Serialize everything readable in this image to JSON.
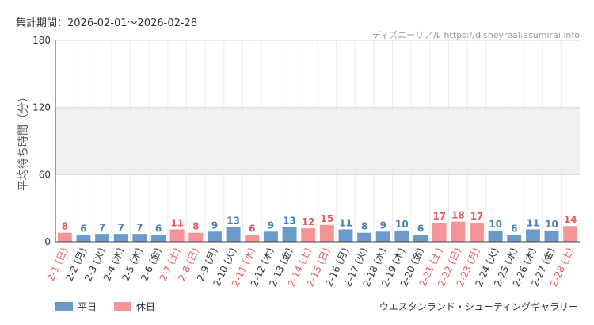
{
  "header": {
    "period_label": "集計期間：2026-02-01〜2026-02-28",
    "source": "ディズニーリアル https://disneyreal.asumirai.info"
  },
  "footer": {
    "attraction": "ウエスタンランド・シューティングギャラリー"
  },
  "colors": {
    "weekday": "#6a9ac7",
    "holiday": "#f59497",
    "weekday_label": "#4a7fb5",
    "holiday_label": "#e8585f",
    "band": "#f0f0f0"
  },
  "chart_data": {
    "type": "bar",
    "ylabel": "平均待ち時間（分）",
    "ylim": [
      0,
      180
    ],
    "yticks": [
      0,
      60,
      120,
      180
    ],
    "shaded_band": [
      60,
      120
    ],
    "categories": [
      "2-1 (日)",
      "2-2 (月)",
      "2-3 (火)",
      "2-4 (水)",
      "2-5 (木)",
      "2-6 (金)",
      "2-7 (土)",
      "2-8 (日)",
      "2-9 (月)",
      "2-10 (火)",
      "2-11 (水)",
      "2-12 (木)",
      "2-13 (金)",
      "2-14 (土)",
      "2-15 (日)",
      "2-16 (月)",
      "2-17 (火)",
      "2-18 (水)",
      "2-19 (木)",
      "2-20 (金)",
      "2-21 (土)",
      "2-22 (日)",
      "2-23 (月)",
      "2-24 (火)",
      "2-25 (水)",
      "2-26 (木)",
      "2-27 (金)",
      "2-28 (土)"
    ],
    "values": [
      8,
      6,
      7,
      7,
      7,
      6,
      11,
      8,
      9,
      13,
      6,
      9,
      13,
      12,
      15,
      11,
      8,
      9,
      10,
      6,
      17,
      18,
      17,
      10,
      6,
      11,
      10,
      14
    ],
    "day_type": [
      "holiday",
      "weekday",
      "weekday",
      "weekday",
      "weekday",
      "weekday",
      "holiday",
      "holiday",
      "weekday",
      "weekday",
      "holiday",
      "weekday",
      "weekday",
      "holiday",
      "holiday",
      "weekday",
      "weekday",
      "weekday",
      "weekday",
      "weekday",
      "holiday",
      "holiday",
      "holiday",
      "weekday",
      "weekday",
      "weekday",
      "weekday",
      "holiday"
    ],
    "legend": [
      {
        "key": "weekday",
        "label": "平日"
      },
      {
        "key": "holiday",
        "label": "休日"
      }
    ],
    "legend_position": "bottom-left"
  }
}
